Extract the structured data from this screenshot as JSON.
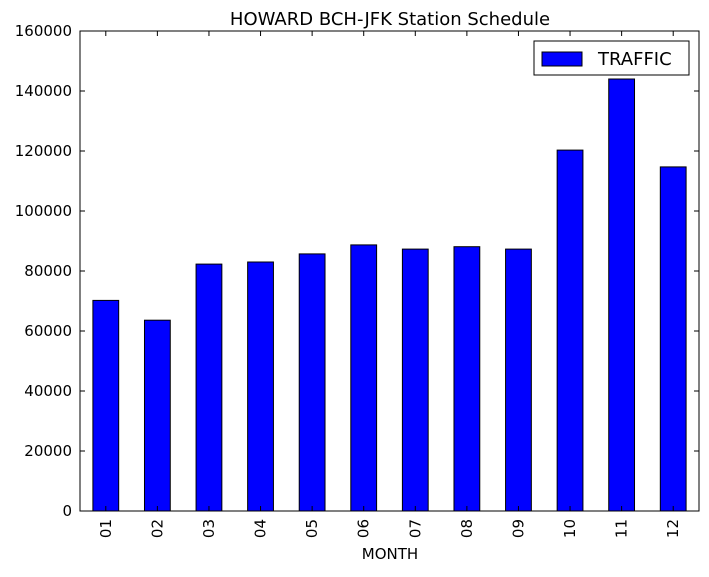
{
  "chart_data": {
    "type": "bar",
    "title": "HOWARD BCH-JFK Station Schedule",
    "xlabel": "MONTH",
    "ylabel": "",
    "categories": [
      "01",
      "02",
      "03",
      "04",
      "05",
      "06",
      "07",
      "08",
      "09",
      "10",
      "11",
      "12"
    ],
    "series": [
      {
        "name": "TRAFFIC",
        "color": "#0000ff",
        "values": [
          70200,
          63600,
          82300,
          83000,
          85700,
          88700,
          87300,
          88100,
          87300,
          120300,
          144000,
          114700
        ]
      }
    ],
    "ylim": [
      0,
      160000
    ],
    "yticks": [
      0,
      20000,
      40000,
      60000,
      80000,
      100000,
      120000,
      140000,
      160000
    ],
    "legend": "top-right",
    "grid": false
  }
}
